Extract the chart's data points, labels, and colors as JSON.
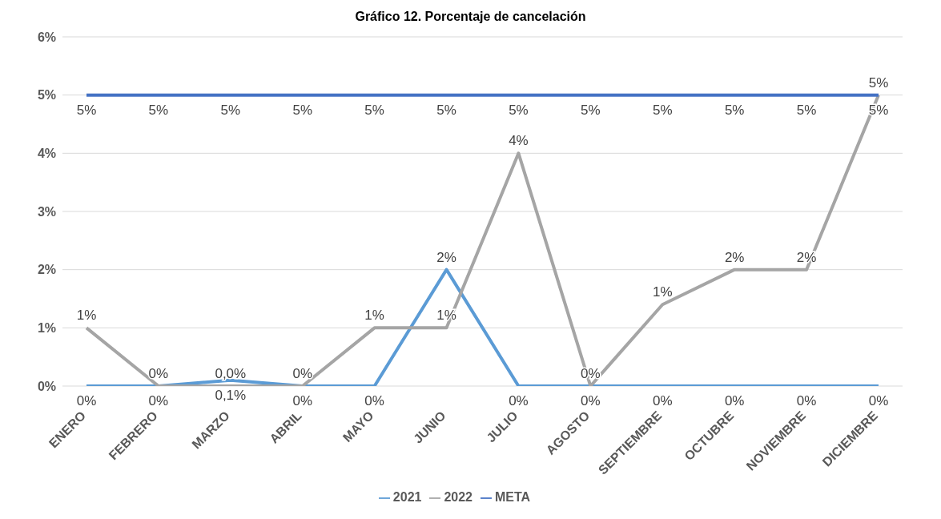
{
  "chart_data": {
    "type": "line",
    "title": "Gráfico 12. Porcentaje de cancelación",
    "categories": [
      "ENERO",
      "FEBRERO",
      "MARZO",
      "ABRIL",
      "MAYO",
      "JUNIO",
      "JULIO",
      "AGOSTO",
      "SEPTIEMBRE",
      "OCTUBRE",
      "NOVIEMBRE",
      "DICIEMBRE"
    ],
    "series": [
      {
        "name": "2021",
        "color": "#5b9bd5",
        "values": [
          0,
          0,
          0.1,
          0,
          0,
          2,
          0,
          0,
          0,
          0,
          0,
          0
        ],
        "value_labels": [
          "0%",
          "0%",
          "0,1%",
          "0%",
          "0%",
          "2%",
          "0%",
          "0%",
          "0%",
          "0%",
          "0%",
          "0%"
        ]
      },
      {
        "name": "2022",
        "color": "#a5a5a5",
        "values": [
          1,
          0,
          0,
          0,
          1,
          1,
          4,
          0,
          1.4,
          2,
          2,
          5
        ],
        "value_labels": [
          "1%",
          "0%",
          "0,0%",
          "0%",
          "1%",
          "1%",
          "4%",
          "0%",
          "1%",
          "2%",
          "2%",
          "5%"
        ]
      },
      {
        "name": "META",
        "color": "#4472c4",
        "values": [
          5,
          5,
          5,
          5,
          5,
          5,
          5,
          5,
          5,
          5,
          5,
          5
        ],
        "value_labels": [
          "5%",
          "5%",
          "5%",
          "5%",
          "5%",
          "5%",
          "5%",
          "5%",
          "5%",
          "5%",
          "5%",
          "5%"
        ]
      }
    ],
    "ylim": [
      0,
      6
    ],
    "yticks": [
      {
        "value": 0,
        "label": "0%"
      },
      {
        "value": 1,
        "label": "1%"
      },
      {
        "value": 2,
        "label": "2%"
      },
      {
        "value": 3,
        "label": "3%"
      },
      {
        "value": 4,
        "label": "4%"
      },
      {
        "value": 5,
        "label": "5%"
      },
      {
        "value": 6,
        "label": "6%"
      }
    ],
    "grid": "y",
    "legend": "bottom",
    "marker": "none",
    "line_style": "solid"
  }
}
